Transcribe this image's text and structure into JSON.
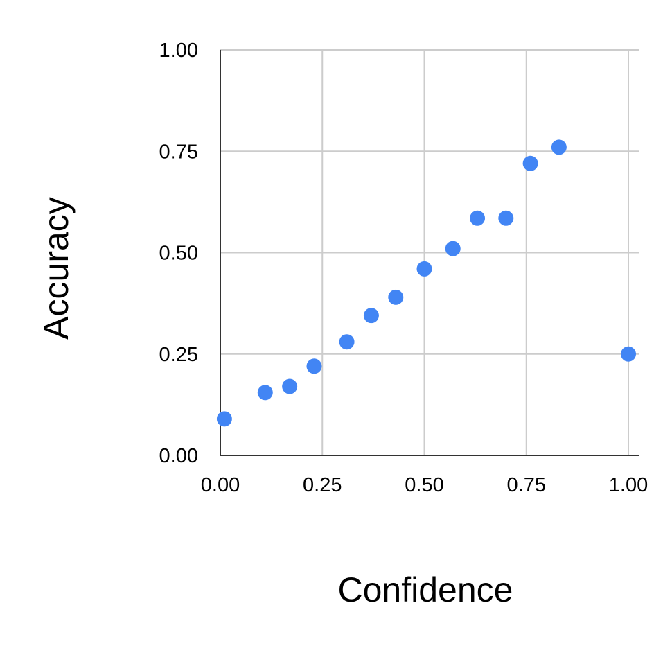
{
  "chart_data": {
    "type": "scatter",
    "title": "",
    "xlabel": "Confidence",
    "ylabel": "Accuracy",
    "xlim": [
      0,
      1
    ],
    "ylim": [
      0,
      1
    ],
    "x_ticks": [
      "0.00",
      "0.25",
      "0.50",
      "0.75",
      "1.00"
    ],
    "y_ticks": [
      "0.00",
      "0.25",
      "0.50",
      "0.75",
      "1.00"
    ],
    "grid": true,
    "legend": "none",
    "marker_color": "#4285f4",
    "series": [
      {
        "x": [
          0.01,
          0.11,
          0.17,
          0.23,
          0.31,
          0.37,
          0.43,
          0.5,
          0.57,
          0.63,
          0.7,
          0.76,
          0.83,
          1.0
        ],
        "y": [
          0.09,
          0.155,
          0.17,
          0.22,
          0.28,
          0.345,
          0.39,
          0.46,
          0.51,
          0.585,
          0.585,
          0.72,
          0.76,
          0.25
        ]
      }
    ]
  }
}
